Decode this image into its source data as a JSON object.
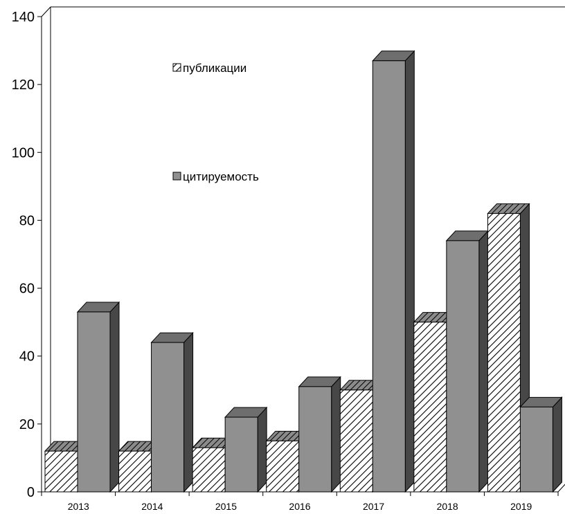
{
  "chart_data": {
    "type": "bar",
    "categories": [
      "2013",
      "2014",
      "2015",
      "2016",
      "2017",
      "2018",
      "2019"
    ],
    "series": [
      {
        "name": "публикации",
        "values": [
          12,
          12,
          13,
          15,
          30,
          50,
          82
        ],
        "pattern": "hatched"
      },
      {
        "name": "цитируемость",
        "values": [
          53,
          44,
          22,
          31,
          127,
          74,
          25
        ],
        "pattern": "solid"
      }
    ],
    "yticks": [
      0,
      20,
      40,
      60,
      80,
      100,
      120,
      140
    ],
    "ylim": [
      0,
      140
    ],
    "grid": false,
    "three_d": true,
    "legend": "inside-top-center",
    "colors": {
      "citation_face": "#909090",
      "citation_top": "#6e6e6e",
      "citation_side": "#474747",
      "hatch_line": "#000000",
      "hatch_bg": "#ffffff",
      "axis": "#000000"
    }
  }
}
